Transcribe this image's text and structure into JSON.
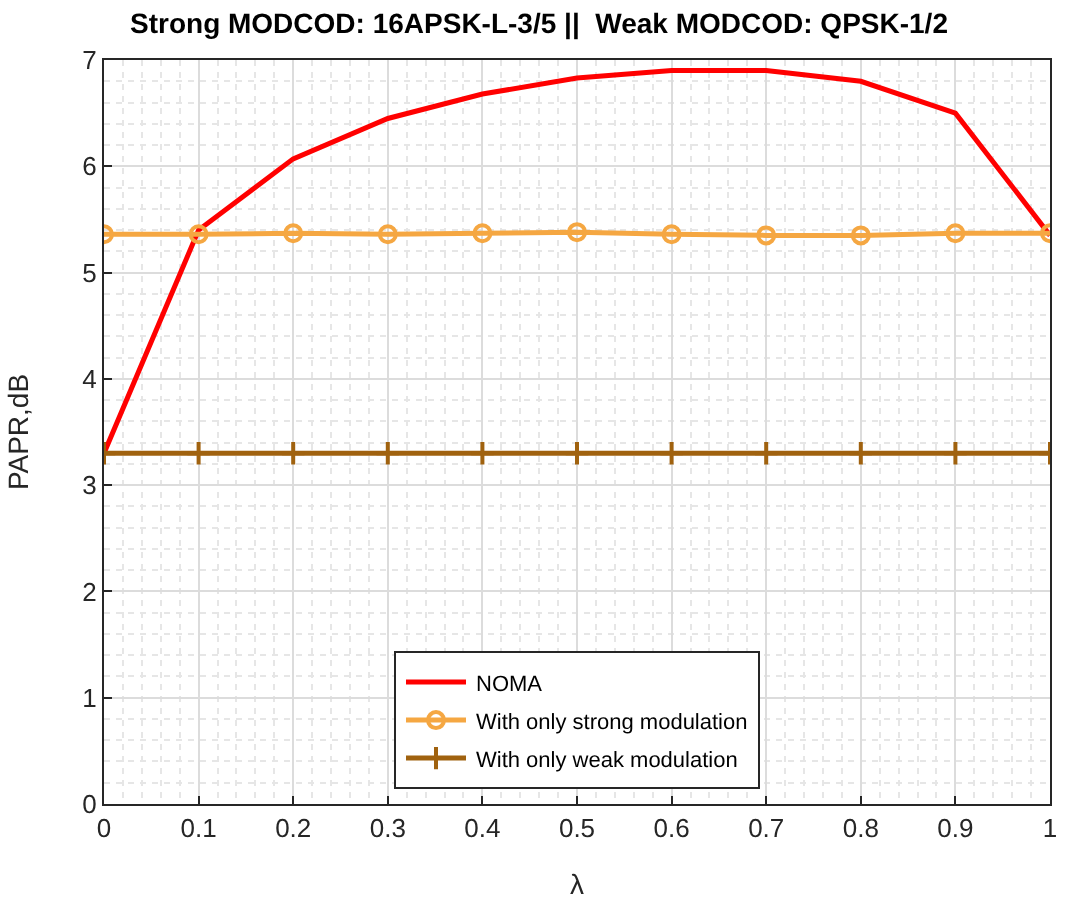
{
  "chart_data": {
    "type": "line",
    "title": "Strong MODCOD: 16APSK-L-3/5 ||  Weak MODCOD: QPSK-1/2",
    "xlabel": "λ",
    "ylabel": "PAPR,dB",
    "x": [
      0,
      0.1,
      0.2,
      0.3,
      0.4,
      0.5,
      0.6,
      0.7,
      0.8,
      0.9,
      1
    ],
    "series": [
      {
        "name": "NOMA",
        "color": "#ff0000",
        "marker": "none",
        "values": [
          3.3,
          5.4,
          6.07,
          6.45,
          6.68,
          6.83,
          6.9,
          6.9,
          6.8,
          6.5,
          5.35
        ]
      },
      {
        "name": "With only strong modulation",
        "color": "#f5a742",
        "marker": "circle",
        "values": [
          5.36,
          5.36,
          5.37,
          5.36,
          5.37,
          5.38,
          5.36,
          5.35,
          5.35,
          5.37,
          5.37
        ]
      },
      {
        "name": "With only weak modulation",
        "color": "#a0620f",
        "marker": "cross",
        "values": [
          3.3,
          3.3,
          3.3,
          3.3,
          3.3,
          3.3,
          3.3,
          3.3,
          3.3,
          3.3,
          3.3
        ]
      }
    ],
    "xlim": [
      0,
      1
    ],
    "xticks": [
      0,
      0.1,
      0.2,
      0.3,
      0.4,
      0.5,
      0.6,
      0.7,
      0.8,
      0.9,
      1
    ],
    "ylim": [
      0,
      7
    ],
    "yticks": [
      0,
      1,
      2,
      3,
      4,
      5,
      6,
      7
    ],
    "grid": true,
    "legend": "bottom",
    "line_style": "solid"
  }
}
